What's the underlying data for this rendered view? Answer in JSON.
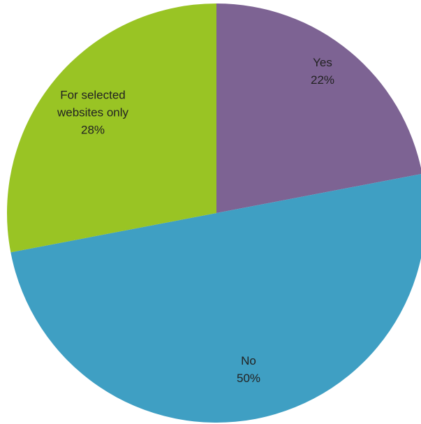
{
  "chart_data": {
    "type": "pie",
    "title": "",
    "start": "12 o'clock",
    "direction": "clockwise",
    "legend": "none",
    "slices": [
      {
        "label_lines": [
          "Yes"
        ],
        "percent_label": "22%",
        "value": 22,
        "color": "#7d6393"
      },
      {
        "label_lines": [
          "No"
        ],
        "percent_label": "50%",
        "value": 50,
        "color": "#3f9fc3"
      },
      {
        "label_lines": [
          "For selected",
          "websites only"
        ],
        "percent_label": "28%",
        "value": 28,
        "color": "#99c424"
      }
    ]
  }
}
